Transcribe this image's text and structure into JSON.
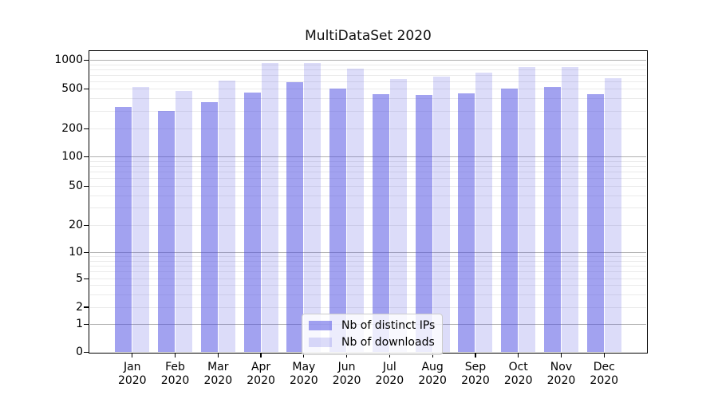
{
  "title": "MultiDataSet 2020",
  "legend": {
    "position": "lower center",
    "items": [
      {
        "label": "Nb of distinct IPs",
        "color": "#a2a2f0",
        "rgba": "rgba(69,69,225,0.5)"
      },
      {
        "label": "Nb of downloads",
        "color": "#dbdbf9",
        "rgba": "rgba(69,69,225,0.19)"
      }
    ]
  },
  "axes": {
    "y_tick_labels": [
      "0",
      "1",
      "2",
      "5",
      "10",
      "20",
      "50",
      "100",
      "200",
      "500",
      "1000"
    ],
    "x_months": [
      "Jan",
      "Feb",
      "Mar",
      "Apr",
      "May",
      "Jun",
      "Jul",
      "Aug",
      "Sep",
      "Oct",
      "Nov",
      "Dec"
    ],
    "x_year": "2020"
  },
  "colors": {
    "grid_major": "#b0b0b0",
    "grid_minor": "#eaeaea",
    "spine": "#000000",
    "text": "#000000",
    "background": "#ffffff"
  },
  "chart_data": {
    "type": "bar",
    "title": "MultiDataSet 2020",
    "categories": [
      "Jan 2020",
      "Feb 2020",
      "Mar 2020",
      "Apr 2020",
      "May 2020",
      "Jun 2020",
      "Jul 2020",
      "Aug 2020",
      "Sep 2020",
      "Oct 2020",
      "Nov 2020",
      "Dec 2020"
    ],
    "series": [
      {
        "name": "Nb of distinct IPs",
        "values": [
          335,
          305,
          370,
          465,
          590,
          510,
          445,
          435,
          455,
          505,
          525,
          445
        ]
      },
      {
        "name": "Nb of downloads",
        "values": [
          525,
          480,
          615,
          945,
          935,
          825,
          635,
          675,
          745,
          845,
          850,
          650
        ]
      }
    ],
    "xlabel": "",
    "ylabel": "",
    "yscale": "symlog-like (0 baseline, then logarithmic)",
    "yticks": [
      0,
      1,
      2,
      5,
      10,
      20,
      50,
      100,
      200,
      500,
      1000
    ],
    "ylim": [
      0,
      1265
    ],
    "grid": "horizontal only; major gray lines at 1,10,100,1000; faint minor lines at 2-9 subdivisions of each decade",
    "legend_position": "lower center"
  }
}
